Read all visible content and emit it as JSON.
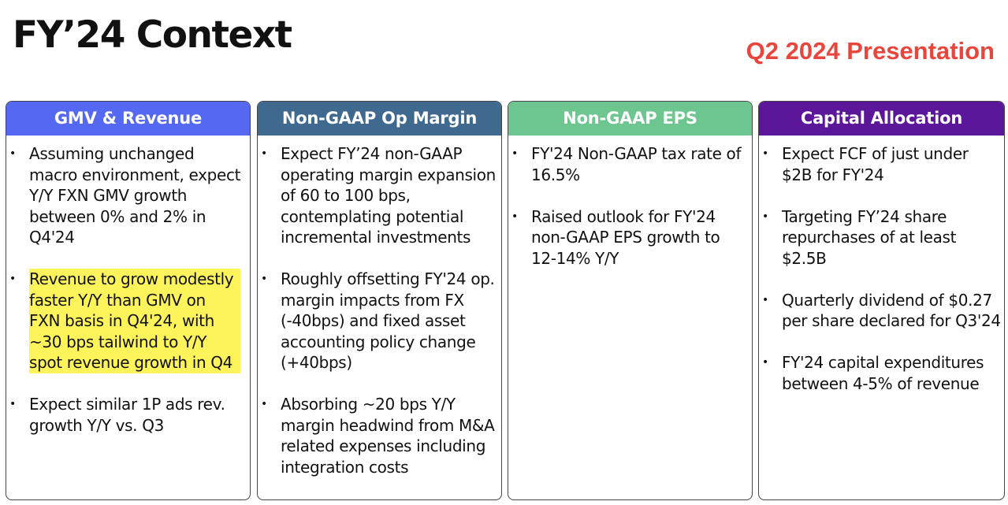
{
  "header": {
    "title": "FY’24 Context",
    "subtitle": "Q2 2024 Presentation"
  },
  "colors": {
    "gmv_header": "#5468f2",
    "margin_header": "#40698f",
    "eps_header": "#6dc690",
    "capital_header": "#5b169a",
    "subtitle": "#e8453c",
    "highlight": "#fdf35a"
  },
  "columns": [
    {
      "header": "GMV & Revenue",
      "bullets": [
        "Assuming unchanged macro environment, expect Y/Y FXN GMV growth between 0% and 2% in Q4'24",
        "Revenue to grow modestly faster Y/Y  than GMV on FXN basis in Q4'24, with ~30 bps tailwind to Y/Y spot revenue growth in Q4",
        "Expect similar 1P ads rev. growth Y/Y vs. Q3"
      ]
    },
    {
      "header": "Non-GAAP Op Margin",
      "bullets": [
        "Expect FY’24 non-GAAP operating margin expansion of 60 to 100 bps, contemplating potential incremental investments",
        "Roughly offsetting FY'24 op. margin impacts from FX (-40bps) and fixed asset accounting policy change (+40bps)",
        "Absorbing ~20 bps Y/Y margin headwind from M&A related expenses including integration costs"
      ]
    },
    {
      "header": "Non-GAAP EPS",
      "bullets": [
        "FY'24 Non-GAAP tax rate of 16.5%",
        "Raised outlook for FY'24 non-GAAP EPS growth to 12-14% Y/Y"
      ]
    },
    {
      "header": "Capital Allocation",
      "bullets": [
        "Expect FCF of just under $2B for FY'24",
        "Targeting FY’24 share repurchases of at least $2.5B",
        "Quarterly dividend of $0.27 per share declared for Q3'24",
        "FY'24 capital expenditures between 4-5% of revenue"
      ]
    }
  ]
}
